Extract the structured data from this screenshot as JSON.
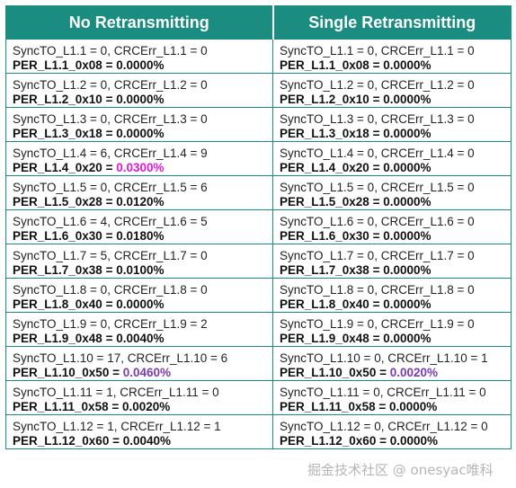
{
  "headers": [
    "No Retransmitting",
    "Single Retransmitting"
  ],
  "colors": {
    "header_bg": "#1b8d80",
    "highlight_magenta": "#e21ad6",
    "highlight_purple": "#7a3ab4"
  },
  "rows": [
    [
      {
        "line1": "SyncTO_L1.1 = 0, CRCErr_L1.1 = 0",
        "label": "PER_L1.1_0x08 = ",
        "value": "0.0000%",
        "color": ""
      },
      {
        "line1": "SyncTO_L1.1 = 0, CRCErr_L1.1 = 0",
        "label": "PER_L1.1_0x08 = ",
        "value": "0.0000%",
        "color": ""
      }
    ],
    [
      {
        "line1": "SyncTO_L1.2 = 0, CRCErr_L1.2 = 0",
        "label": "PER_L1.2_0x10 = ",
        "value": "0.0000%",
        "color": ""
      },
      {
        "line1": "SyncTO_L1.2 = 0, CRCErr_L1.2 = 0",
        "label": "PER_L1.2_0x10 = ",
        "value": "0.0000%",
        "color": ""
      }
    ],
    [
      {
        "line1": "SyncTO_L1.3 = 0, CRCErr_L1.3 = 0",
        "label": "PER_L1.3_0x18 = ",
        "value": "0.0000%",
        "color": ""
      },
      {
        "line1": "SyncTO_L1.3 = 0, CRCErr_L1.3 = 0",
        "label": "PER_L1.3_0x18 = ",
        "value": "0.0000%",
        "color": ""
      }
    ],
    [
      {
        "line1": "SyncTO_L1.4 = 6, CRCErr_L1.4 = 9",
        "label": "PER_L1.4_0x20 = ",
        "value": "0.0300%",
        "color": "#e21ad6"
      },
      {
        "line1": "SyncTO_L1.4 = 0, CRCErr_L1.4 = 0",
        "label": "PER_L1.4_0x20 = ",
        "value": "0.0000%",
        "color": ""
      }
    ],
    [
      {
        "line1": "SyncTO_L1.5 = 0, CRCErr_L1.5 = 6",
        "label": "PER_L1.5_0x28 = ",
        "value": "0.0120%",
        "color": ""
      },
      {
        "line1": "SyncTO_L1.5 = 0, CRCErr_L1.5 = 0",
        "label": "PER_L1.5_0x28 = ",
        "value": "0.0000%",
        "color": ""
      }
    ],
    [
      {
        "line1": "SyncTO_L1.6 = 4, CRCErr_L1.6 = 5",
        "label": "PER_L1.6_0x30 = ",
        "value": "0.0180%",
        "color": ""
      },
      {
        "line1": "SyncTO_L1.6 = 0, CRCErr_L1.6 = 0",
        "label": "PER_L1.6_0x30 = ",
        "value": "0.0000%",
        "color": ""
      }
    ],
    [
      {
        "line1": "SyncTO_L1.7 = 5, CRCErr_L1.7 = 0",
        "label": "PER_L1.7_0x38 = ",
        "value": "0.0100%",
        "color": ""
      },
      {
        "line1": "SyncTO_L1.7 = 0, CRCErr_L1.7 = 0",
        "label": "PER_L1.7_0x38 = ",
        "value": "0.0000%",
        "color": ""
      }
    ],
    [
      {
        "line1": "SyncTO_L1.8 = 0, CRCErr_L1.8 = 0",
        "label": "PER_L1.8_0x40 = ",
        "value": "0.0000%",
        "color": ""
      },
      {
        "line1": "SyncTO_L1.8 = 0, CRCErr_L1.8 = 0",
        "label": "PER_L1.8_0x40 = ",
        "value": "0.0000%",
        "color": ""
      }
    ],
    [
      {
        "line1": "SyncTO_L1.9 = 0, CRCErr_L1.9 = 2",
        "label": "PER_L1.9_0x48 = ",
        "value": "0.0040%",
        "color": ""
      },
      {
        "line1": "SyncTO_L1.9 = 0, CRCErr_L1.9 = 0",
        "label": "PER_L1.9_0x48 = ",
        "value": "0.0000%",
        "color": ""
      }
    ],
    [
      {
        "line1": "SyncTO_L1.10 = 17, CRCErr_L1.10 = 6",
        "label": "PER_L1.10_0x50 = ",
        "value": "0.0460%",
        "color": "#7a3ab4"
      },
      {
        "line1": "SyncTO_L1.10 = 0, CRCErr_L1.10 = 1",
        "label": "PER_L1.10_0x50 = ",
        "value": "0.0020%",
        "color": "#7a3ab4"
      }
    ],
    [
      {
        "line1": "SyncTO_L1.11 = 1, CRCErr_L1.11 = 0",
        "label": "PER_L1.11_0x58 = ",
        "value": "0.0020%",
        "color": ""
      },
      {
        "line1": "SyncTO_L1.11 = 0, CRCErr_L1.11 = 0",
        "label": "PER_L1.11_0x58 = ",
        "value": "0.0000%",
        "color": ""
      }
    ],
    [
      {
        "line1": "SyncTO_L1.12 = 1, CRCErr_L1.12 = 1",
        "label": "PER_L1.12_0x60 = ",
        "value": "0.0040%",
        "color": ""
      },
      {
        "line1": "SyncTO_L1.12 = 0, CRCErr_L1.12 = 0",
        "label": "PER_L1.12_0x60 = ",
        "value": "0.0000%",
        "color": ""
      }
    ]
  ],
  "watermark": "掘金技术社区 @ onesyac唯科"
}
